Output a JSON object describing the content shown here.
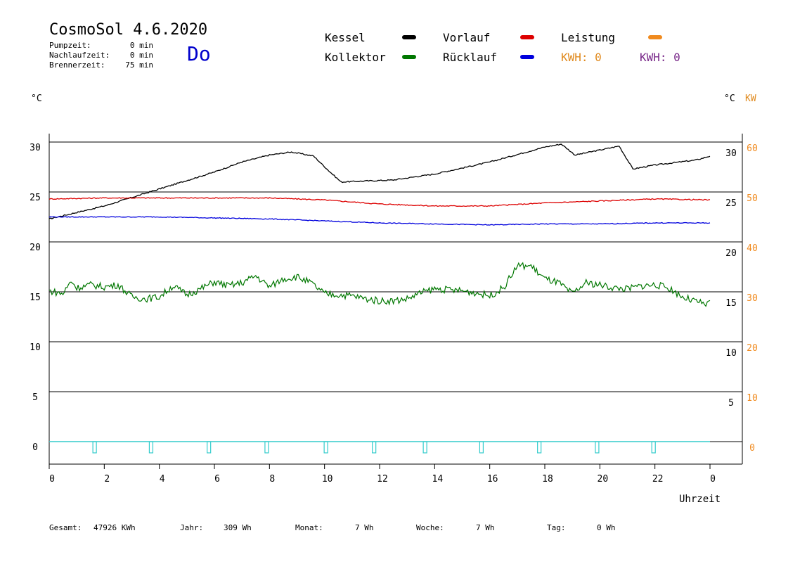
{
  "header": {
    "title": "CosmoSol 4.6.2020",
    "day": "Do",
    "stats": [
      {
        "label": "Pumpzeit:",
        "value": "0 min"
      },
      {
        "label": "Nachlaufzeit:",
        "value": "0 min"
      },
      {
        "label": "Brennerzeit:",
        "value": "75 min"
      }
    ]
  },
  "legend": {
    "kessel": "Kessel",
    "kollektor": "Kollektor",
    "vorlauf": "Vorlauf",
    "ruecklauf": "Rücklauf",
    "leistung": "Leistung",
    "kwh1": "KWH: 0",
    "kwh2": "KWH: 0"
  },
  "colors": {
    "kessel": "#000000",
    "kollektor": "#007700",
    "vorlauf": "#dd0000",
    "ruecklauf": "#0000dd",
    "leistung": "#f08a1e",
    "kwh2": "#7a2a8a",
    "pump": "#33cccc"
  },
  "axes": {
    "left_unit": "°C",
    "right_unit": "°C",
    "right_unit2": "KW",
    "xlabel": "Uhrzeit"
  },
  "footer": [
    {
      "label": "Gesamt:",
      "value": "47926 KWh"
    },
    {
      "label": "Jahr:",
      "value": "309 Wh"
    },
    {
      "label": "Monat:",
      "value": "7 Wh"
    },
    {
      "label": "Woche:",
      "value": "7 Wh"
    },
    {
      "label": "Tag:",
      "value": "0 Wh"
    }
  ],
  "chart_data": {
    "type": "line",
    "xlabel": "Uhrzeit",
    "xlim": [
      0,
      24
    ],
    "ylim": [
      -2.4,
      31
    ],
    "x_ticks": [
      "0",
      "2",
      "4",
      "6",
      "8",
      "10",
      "12",
      "14",
      "16",
      "18",
      "20",
      "22",
      "0"
    ],
    "y_ticks_left": [
      "0",
      "5",
      "10",
      "15",
      "20",
      "25",
      "30"
    ],
    "y_ticks_right_temp": [
      "5",
      "10",
      "15",
      "20",
      "25",
      "30"
    ],
    "y_ticks_right_kw": [
      "0",
      "10",
      "20",
      "30",
      "40",
      "50",
      "60"
    ],
    "grid": true,
    "series": [
      {
        "name": "Kessel",
        "x": [
          0,
          2,
          4,
          6,
          7,
          8,
          8.8,
          9.6,
          10.2,
          10.6,
          11.5,
          12.5,
          14,
          16,
          18,
          18.6,
          19.1,
          20,
          20.7,
          21.2,
          22,
          23.5,
          24
        ],
        "y": [
          22.3,
          23.6,
          25.3,
          27,
          28,
          28.7,
          29,
          28.6,
          27,
          26,
          26.1,
          26.2,
          26.8,
          28,
          29.5,
          29.8,
          28.7,
          29.2,
          29.6,
          27.3,
          27.7,
          28.2,
          28.6
        ]
      },
      {
        "name": "Vorlauf",
        "x": [
          0,
          2,
          4,
          6,
          8,
          9,
          10,
          12,
          14,
          16,
          18,
          20,
          22,
          24
        ],
        "y": [
          24.3,
          24.4,
          24.4,
          24.4,
          24.4,
          24.3,
          24.2,
          23.8,
          23.6,
          23.6,
          23.9,
          24.1,
          24.3,
          24.2
        ]
      },
      {
        "name": "Rücklauf",
        "x": [
          0,
          2,
          4,
          6,
          8,
          10,
          12,
          14,
          16,
          18,
          20,
          22,
          24
        ],
        "y": [
          22.5,
          22.5,
          22.5,
          22.4,
          22.3,
          22.1,
          21.9,
          21.8,
          21.7,
          21.8,
          21.8,
          21.9,
          21.9
        ]
      },
      {
        "name": "Kollektor",
        "x": [
          0,
          0.5,
          0.8,
          1,
          1.5,
          2,
          2.5,
          3,
          3.5,
          4,
          4.5,
          5,
          5.5,
          6,
          6.5,
          7,
          7.5,
          8,
          8.5,
          9,
          9.5,
          10,
          10.5,
          11,
          11.5,
          12,
          12.5,
          13,
          13.5,
          14,
          14.5,
          15,
          15.5,
          16,
          16.5,
          17,
          17.5,
          18,
          18.5,
          19,
          19.5,
          20,
          20.5,
          21,
          21.5,
          22,
          22.5,
          23,
          23.5,
          23.9,
          24
        ],
        "y": [
          15.1,
          14.8,
          16.1,
          15.4,
          15.7,
          15.5,
          15.7,
          14.5,
          14.3,
          14.5,
          15.6,
          14.7,
          15.3,
          16,
          15.6,
          15.9,
          16.6,
          15.5,
          16.3,
          16.5,
          15.9,
          14.8,
          14.7,
          14.6,
          14.3,
          14.1,
          14.1,
          14.3,
          14.9,
          15.3,
          15.2,
          15.1,
          14.9,
          14.6,
          15.4,
          17.6,
          17.6,
          16.3,
          15.9,
          14.8,
          15.9,
          15.7,
          15.4,
          15.3,
          15.6,
          15.7,
          15.4,
          14.5,
          14,
          13.7,
          14.3
        ]
      }
    ]
  }
}
